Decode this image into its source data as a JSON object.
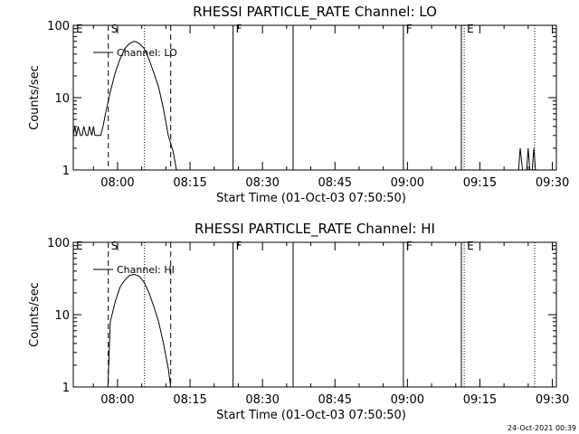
{
  "chart_data": [
    {
      "type": "line",
      "title": "RHESSI PARTICLE_RATE Channel: LO",
      "xlabel": "Start Time (01-Oct-03 07:50:50)",
      "ylabel": "Counts/sec",
      "y_scale": "log",
      "ylim": [
        1,
        100
      ],
      "xlim": [
        "07:50:50",
        "09:30:50"
      ],
      "x_ticks": [
        "08:00",
        "08:15",
        "08:30",
        "08:45",
        "09:00",
        "09:15",
        "09:30"
      ],
      "y_ticks": [
        "1",
        "10",
        "100"
      ],
      "legend": "top-left",
      "series": [
        {
          "name": "Channel: LO",
          "x": [
            "07:50:50",
            "07:51:10",
            "07:51:30",
            "07:51:50",
            "07:52:20",
            "07:52:40",
            "07:53:00",
            "07:53:30",
            "07:53:50",
            "07:54:10",
            "07:54:40",
            "07:55:00",
            "07:55:20",
            "07:55:50",
            "07:56:10",
            "07:56:30",
            "07:57:00",
            "07:57:30",
            "07:58:30",
            "07:59:30",
            "08:00:30",
            "08:01:30",
            "08:02:30",
            "08:03:30",
            "08:04:30",
            "08:05:30",
            "08:06:30",
            "08:07:30",
            "08:08:30",
            "08:09:30",
            "08:10:30",
            "08:11:30",
            "08:12:00",
            "08:12:10",
            "09:23:00",
            "09:23:20",
            "09:23:50",
            "09:24:10",
            "09:24:40",
            "09:25:00",
            "09:25:20",
            "09:25:50",
            "09:26:10",
            "09:26:30"
          ],
          "values": [
            3,
            4,
            3,
            4,
            3,
            3,
            4,
            3,
            3,
            4,
            3,
            4,
            3,
            3,
            3,
            3,
            4,
            6,
            12,
            22,
            34,
            48,
            56,
            60,
            56,
            48,
            34,
            22,
            14,
            7,
            3,
            1.8,
            1.2,
            1,
            1,
            2,
            1,
            1,
            1,
            2,
            1,
            1,
            2,
            1
          ]
        }
      ],
      "markers": [
        {
          "label": "E",
          "time": "07:50:50",
          "style": "none"
        },
        {
          "label": "S",
          "time": "07:58:05",
          "style": "dashed"
        },
        {
          "time": "08:05:35",
          "style": "dotted"
        },
        {
          "time": "08:11:00",
          "style": "dashed"
        },
        {
          "label": "F",
          "time": "08:23:55",
          "style": "solid"
        },
        {
          "time": "08:36:20",
          "style": "solid"
        },
        {
          "label": "F",
          "time": "08:59:10",
          "style": "solid"
        },
        {
          "time": "09:11:10",
          "style": "solid"
        },
        {
          "label": "E",
          "time": "09:11:45",
          "style": "dotted"
        },
        {
          "time": "09:26:20",
          "style": "dotted"
        }
      ]
    },
    {
      "type": "line",
      "title": "RHESSI PARTICLE_RATE Channel: HI",
      "xlabel": "Start Time (01-Oct-03 07:50:50)",
      "ylabel": "Counts/sec",
      "y_scale": "log",
      "ylim": [
        1,
        100
      ],
      "xlim": [
        "07:50:50",
        "09:30:50"
      ],
      "x_ticks": [
        "08:00",
        "08:15",
        "08:30",
        "08:45",
        "09:00",
        "09:15",
        "09:30"
      ],
      "y_ticks": [
        "1",
        "10",
        "100"
      ],
      "legend": "top-left",
      "series": [
        {
          "name": "Channel: HI",
          "x": [
            "07:58:00",
            "07:58:30",
            "07:59:30",
            "08:00:30",
            "08:01:30",
            "08:02:30",
            "08:03:30",
            "08:04:30",
            "08:05:30",
            "08:06:30",
            "08:07:30",
            "08:08:30",
            "08:09:30",
            "08:10:30",
            "08:11:00"
          ],
          "values": [
            1,
            8,
            15,
            24,
            30,
            35,
            36,
            34,
            28,
            20,
            13,
            8,
            4,
            1.8,
            1
          ]
        }
      ],
      "markers": [
        {
          "label": "E",
          "time": "07:50:50",
          "style": "none"
        },
        {
          "label": "S",
          "time": "07:58:05",
          "style": "dashed"
        },
        {
          "time": "08:05:35",
          "style": "dotted"
        },
        {
          "time": "08:11:00",
          "style": "dashed"
        },
        {
          "label": "F",
          "time": "08:23:55",
          "style": "solid"
        },
        {
          "time": "08:36:20",
          "style": "solid"
        },
        {
          "label": "F",
          "time": "08:59:10",
          "style": "solid"
        },
        {
          "time": "09:11:10",
          "style": "solid"
        },
        {
          "label": "E",
          "time": "09:11:45",
          "style": "dotted"
        },
        {
          "time": "09:26:20",
          "style": "dotted"
        }
      ]
    }
  ],
  "footer": {
    "timestamp": "24-Oct-2021 00:39"
  },
  "colors": {
    "line": "#000000",
    "background": "#ffffff"
  }
}
